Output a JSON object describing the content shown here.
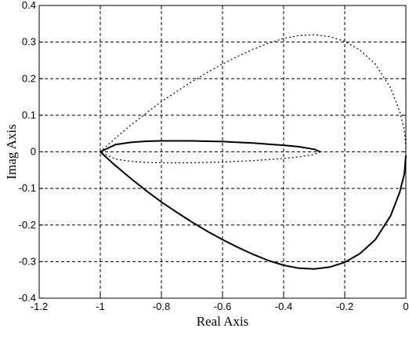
{
  "chart_data": {
    "type": "line",
    "title": "",
    "xlabel": "Real Axis",
    "ylabel": "Imag Axis",
    "xlim": [
      -1.2,
      0
    ],
    "ylim": [
      -0.4,
      0.4
    ],
    "grid": true,
    "x_ticks": [
      -1.2,
      -1,
      -0.8,
      -0.6,
      -0.4,
      -0.2,
      0
    ],
    "y_ticks": [
      -0.4,
      -0.3,
      -0.2,
      -0.1,
      0,
      0.1,
      0.2,
      0.3,
      0.4
    ],
    "x_tick_labels": [
      "-1.2",
      "-1",
      "-0.8",
      "-0.6",
      "-0.4",
      "-0.2",
      "0"
    ],
    "y_tick_labels": [
      "-0.4",
      "-0.3",
      "-0.2",
      "-0.1",
      "0",
      "0.1",
      "0.2",
      "0.3",
      "0.4"
    ],
    "series": [
      {
        "style": "solid",
        "x": [
          -1.0,
          -0.95,
          -0.9,
          -0.85,
          -0.8,
          -0.75,
          -0.7,
          -0.65,
          -0.6,
          -0.55,
          -0.5,
          -0.45,
          -0.4,
          -0.35,
          -0.3,
          -0.25,
          -0.2,
          -0.15,
          -0.1,
          -0.05,
          -0.02,
          -0.005,
          0.0
        ],
        "y": [
          0.0,
          -0.038,
          -0.073,
          -0.106,
          -0.137,
          -0.165,
          -0.192,
          -0.217,
          -0.24,
          -0.261,
          -0.28,
          -0.297,
          -0.31,
          -0.318,
          -0.32,
          -0.315,
          -0.302,
          -0.278,
          -0.24,
          -0.175,
          -0.11,
          -0.06,
          -0.01
        ]
      },
      {
        "style": "dashed",
        "x": [
          0.0,
          -0.005,
          -0.02,
          -0.05,
          -0.1,
          -0.15,
          -0.2,
          -0.25,
          -0.3,
          -0.35,
          -0.4,
          -0.45,
          -0.5,
          -0.55,
          -0.6,
          -0.65,
          -0.7,
          -0.75,
          -0.8,
          -0.85,
          -0.9,
          -0.95,
          -1.0
        ],
        "y": [
          0.01,
          0.06,
          0.11,
          0.175,
          0.24,
          0.278,
          0.302,
          0.315,
          0.32,
          0.318,
          0.31,
          0.297,
          0.28,
          0.261,
          0.24,
          0.217,
          0.192,
          0.165,
          0.137,
          0.106,
          0.073,
          0.038,
          0.0
        ]
      },
      {
        "style": "solid",
        "x": [
          -1.0,
          -0.95,
          -0.9,
          -0.85,
          -0.8,
          -0.75,
          -0.7,
          -0.65,
          -0.6,
          -0.55,
          -0.5,
          -0.45,
          -0.4,
          -0.35,
          -0.3,
          -0.28
        ],
        "y": [
          0.0,
          0.02,
          0.026,
          0.029,
          0.03,
          0.03,
          0.03,
          0.029,
          0.028,
          0.026,
          0.024,
          0.021,
          0.018,
          0.014,
          0.007,
          0.0
        ]
      },
      {
        "style": "dashed",
        "x": [
          -0.28,
          -0.3,
          -0.35,
          -0.4,
          -0.45,
          -0.5,
          -0.55,
          -0.6,
          -0.65,
          -0.7,
          -0.75,
          -0.8,
          -0.85,
          -0.9,
          -0.95,
          -1.0
        ],
        "y": [
          0.0,
          -0.007,
          -0.014,
          -0.018,
          -0.021,
          -0.024,
          -0.026,
          -0.028,
          -0.029,
          -0.03,
          -0.03,
          -0.03,
          -0.029,
          -0.026,
          -0.02,
          0.0
        ]
      }
    ]
  }
}
